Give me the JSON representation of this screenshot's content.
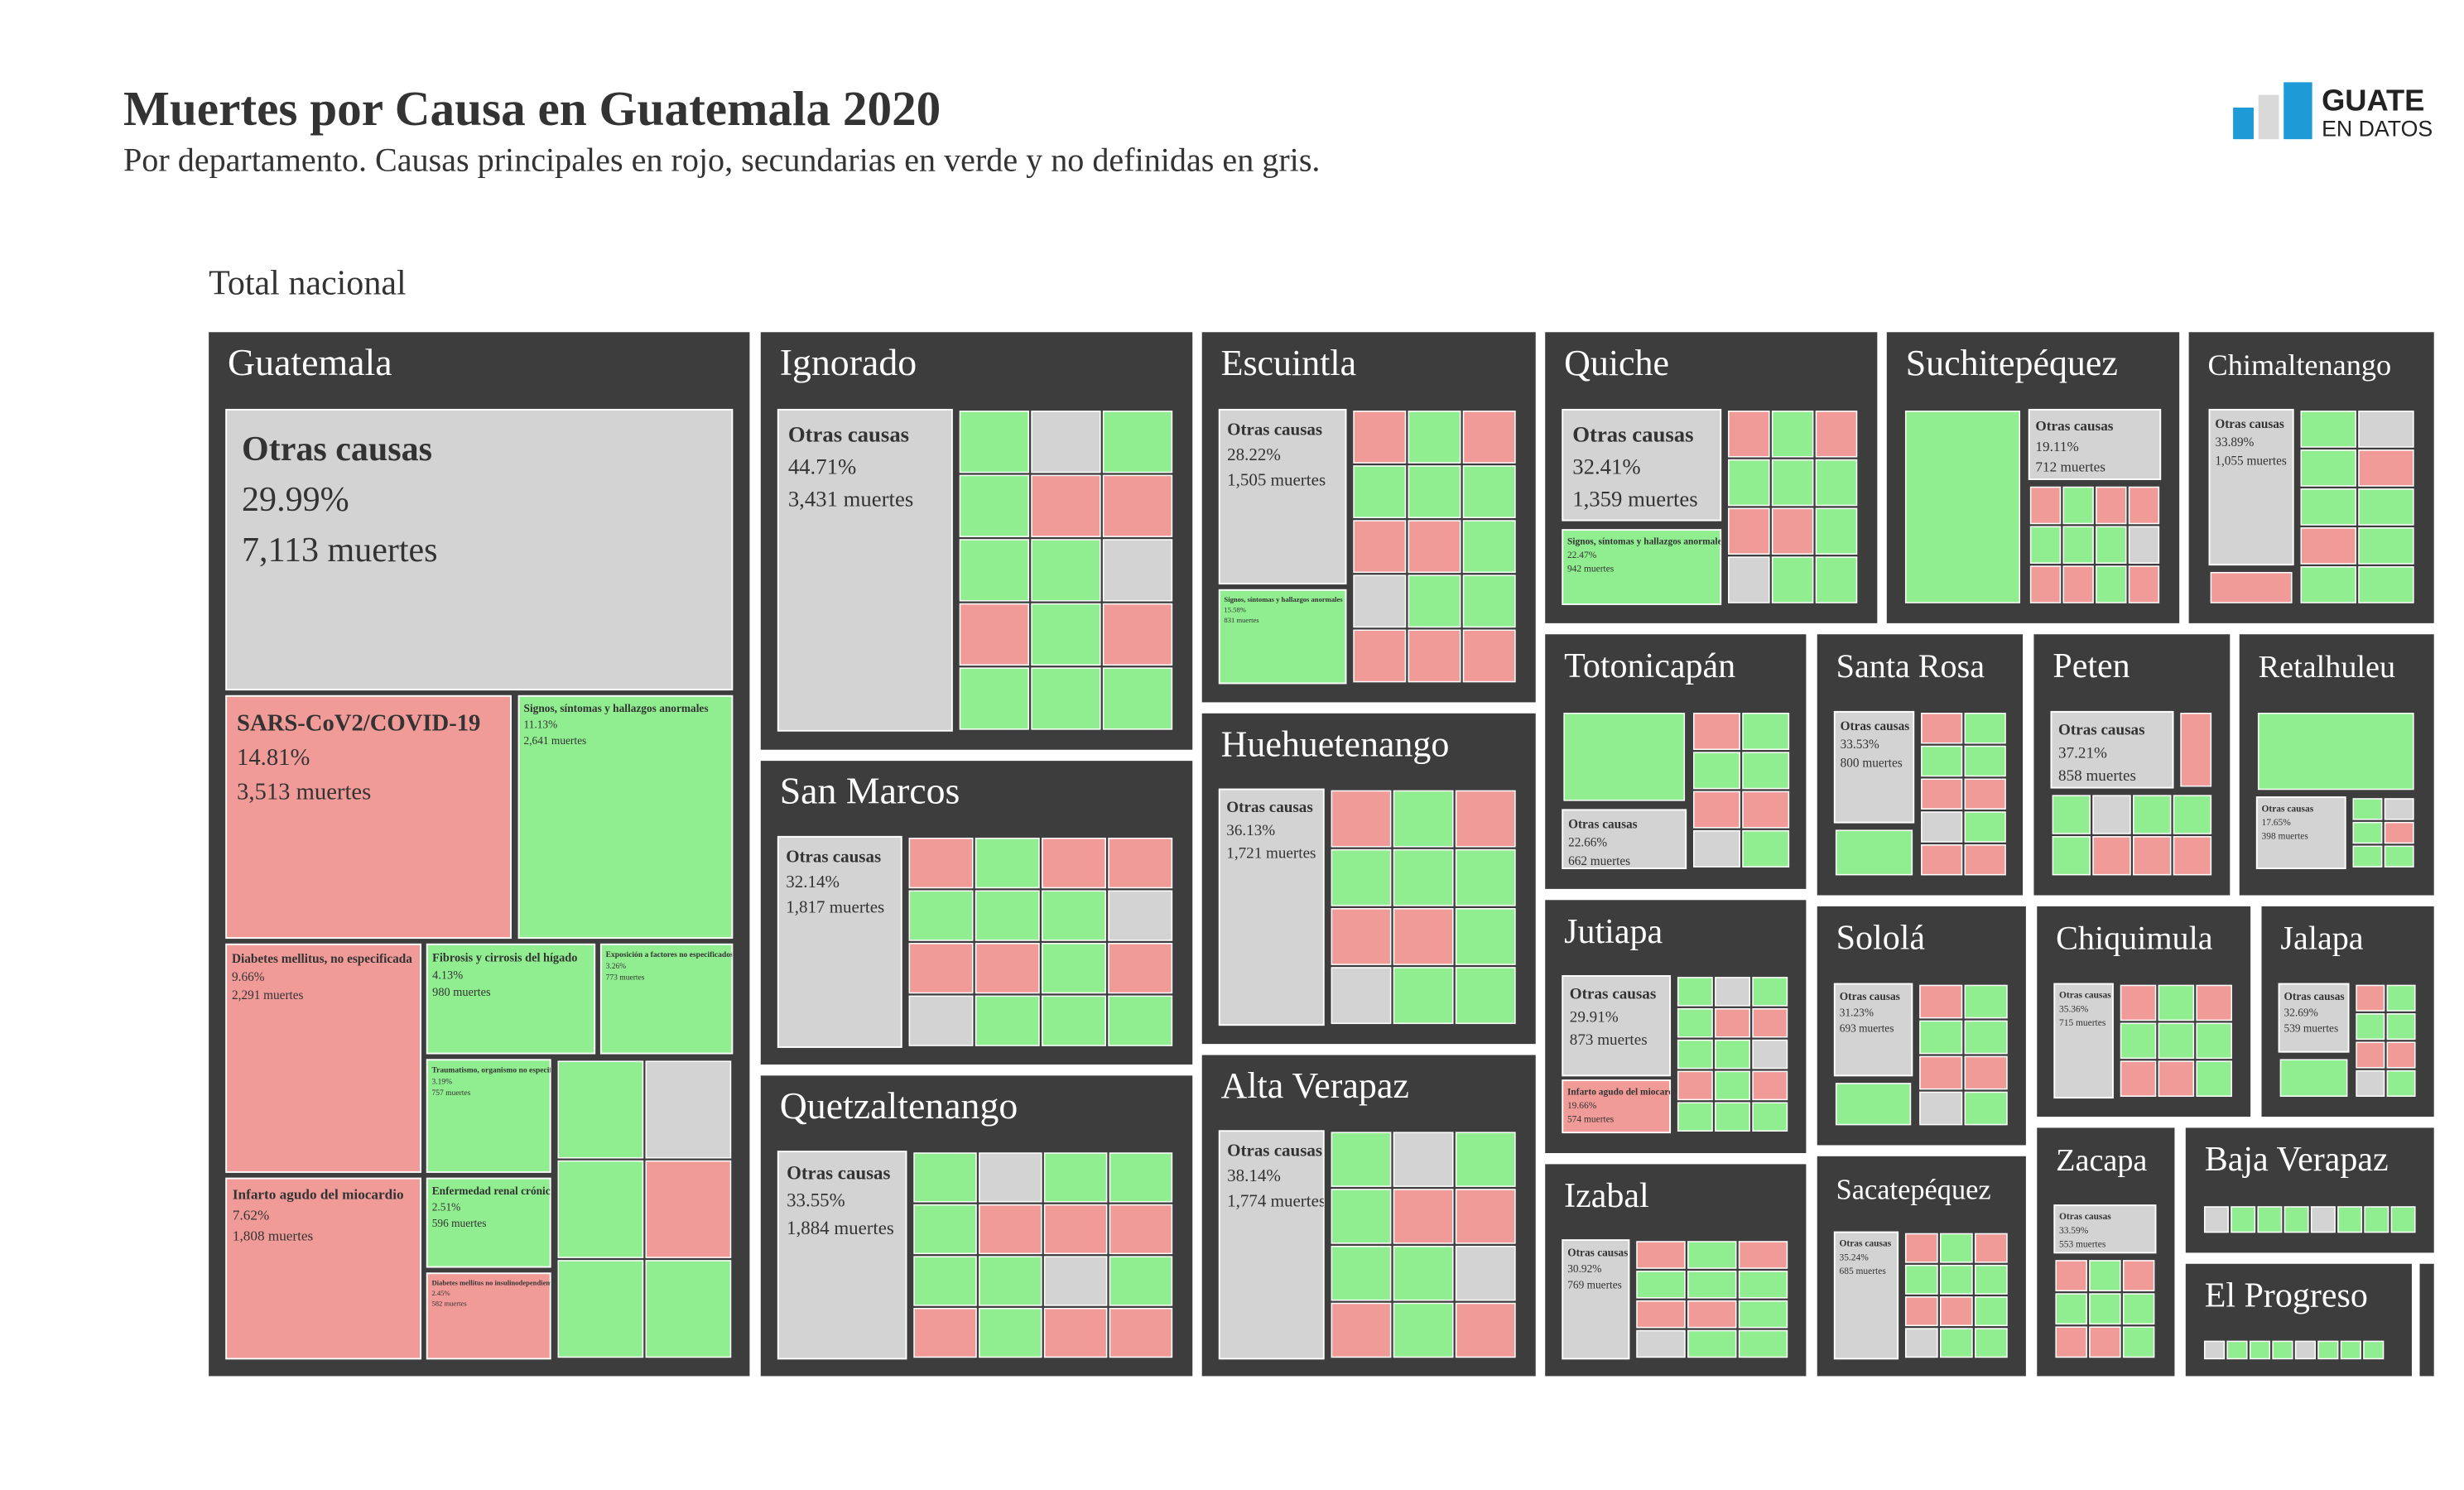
{
  "logo": {
    "line1": "GUATE",
    "line2": "EN DATOS"
  },
  "chart_data": {
    "type": "treemap",
    "title": "Muertes por Causa en Guatemala 2020",
    "subtitle": "Por departamento. Causas principales en rojo, secundarias en verde y no definidas en gris.",
    "root_label": "Total nacional",
    "departments": [
      {
        "name": "Guatemala",
        "cells": [
          {
            "name": "Otras causas",
            "color": "#d3d3d3",
            "pct": {
              "value": 29.99,
              "label": "29.99%"
            },
            "deaths": {
              "value": 7113,
              "label": "7,113 muertes"
            }
          },
          {
            "name": "SARS-CoV2/COVID-19",
            "color": "#f09b98",
            "pct": {
              "value": 14.81,
              "label": "14.81%"
            },
            "deaths": {
              "value": 3513,
              "label": "3,513 muertes"
            }
          },
          {
            "name": "Signos, síntomas y hallazgos anormales",
            "color": "#90ee90",
            "pct": {
              "value": 11.13,
              "label": "11.13%"
            },
            "deaths": {
              "value": 2641,
              "label": "2,641 muertes"
            }
          },
          {
            "name": "Diabetes mellitus, no especificada",
            "color": "#f09b98",
            "pct": {
              "value": 9.66,
              "label": "9.66%"
            },
            "deaths": {
              "value": 2291,
              "label": "2,291 muertes"
            }
          },
          {
            "name": "Infarto agudo del miocardio",
            "color": "#f09b98",
            "pct": {
              "value": 7.62,
              "label": "7.62%"
            },
            "deaths": {
              "value": 1808,
              "label": "1,808 muertes"
            }
          },
          {
            "name": "Fibrosis y cirrosis del hígado",
            "color": "#90ee90",
            "pct": {
              "value": 4.13,
              "label": "4.13%"
            },
            "deaths": {
              "value": 980,
              "label": "980 muertes"
            }
          },
          {
            "name": "Exposición a factores no especificados",
            "color": "#90ee90",
            "pct": {
              "value": 3.26,
              "label": "3.26%"
            },
            "deaths": {
              "value": 773,
              "label": "773 muertes"
            }
          },
          {
            "name": "Traumatismo, organismo no especificado",
            "color": "#90ee90",
            "pct": {
              "value": 3.19,
              "label": "3.19%"
            },
            "deaths": {
              "value": 757,
              "label": "757 muertes"
            }
          },
          {
            "name": "Enfermedad renal crónica",
            "color": "#90ee90",
            "pct": {
              "value": 2.51,
              "label": "2.51%"
            },
            "deaths": {
              "value": 596,
              "label": "596 muertes"
            }
          },
          {
            "name": "Diabetes mellitus no insulinodependiente",
            "color": "#f09b98",
            "pct": {
              "value": 2.45,
              "label": "2.45%"
            },
            "deaths": {
              "value": 582,
              "label": "582 muertes"
            }
          }
        ]
      },
      {
        "name": "Ignorado",
        "cells": [
          {
            "name": "Otras causas",
            "color": "#d3d3d3",
            "pct": {
              "value": 44.71,
              "label": "44.71%"
            },
            "deaths": {
              "value": 3431,
              "label": "3,431 muertes"
            }
          }
        ]
      },
      {
        "name": "San Marcos",
        "cells": [
          {
            "name": "Otras causas",
            "color": "#d3d3d3",
            "pct": {
              "value": 32.14,
              "label": "32.14%"
            },
            "deaths": {
              "value": 1817,
              "label": "1,817 muertes"
            }
          }
        ]
      },
      {
        "name": "Quetzaltenango",
        "cells": [
          {
            "name": "Otras causas",
            "color": "#d3d3d3",
            "pct": {
              "value": 33.55,
              "label": "33.55%"
            },
            "deaths": {
              "value": 1884,
              "label": "1,884 muertes"
            }
          }
        ]
      },
      {
        "name": "Escuintla",
        "cells": [
          {
            "name": "Otras causas",
            "color": "#d3d3d3",
            "pct": {
              "value": 28.22,
              "label": "28.22%"
            },
            "deaths": {
              "value": 1505,
              "label": "1,505 muertes"
            }
          },
          {
            "name": "Signos, síntomas y hallazgos anormales",
            "color": "#90ee90",
            "pct": {
              "value": 15.58,
              "label": "15.58%"
            },
            "deaths": {
              "value": 831,
              "label": "831 muertes"
            }
          }
        ]
      },
      {
        "name": "Huehuetenango",
        "cells": [
          {
            "name": "Otras causas",
            "color": "#d3d3d3",
            "pct": {
              "value": 36.13,
              "label": "36.13%"
            },
            "deaths": {
              "value": 1721,
              "label": "1,721 muertes"
            }
          }
        ]
      },
      {
        "name": "Alta Verapaz",
        "cells": [
          {
            "name": "Otras causas",
            "color": "#d3d3d3",
            "pct": {
              "value": 38.14,
              "label": "38.14%"
            },
            "deaths": {
              "value": 1774,
              "label": "1,774 muertes"
            }
          }
        ]
      },
      {
        "name": "Quiche",
        "cells": [
          {
            "name": "Otras causas",
            "color": "#d3d3d3",
            "pct": {
              "value": 32.41,
              "label": "32.41%"
            },
            "deaths": {
              "value": 1359,
              "label": "1,359 muertes"
            }
          },
          {
            "name": "Signos, síntomas y hallazgos anormales",
            "color": "#90ee90",
            "pct": {
              "value": 22.47,
              "label": "22.47%"
            },
            "deaths": {
              "value": 942,
              "label": "942 muertes"
            }
          }
        ]
      },
      {
        "name": "Suchitepéquez",
        "cells": [
          {
            "name": "Otras causas",
            "color": "#d3d3d3",
            "pct": {
              "value": 19.11,
              "label": "19.11%"
            },
            "deaths": {
              "value": 712,
              "label": "712 muertes"
            }
          }
        ]
      },
      {
        "name": "Chimaltenango",
        "cells": [
          {
            "name": "Otras causas",
            "color": "#d3d3d3",
            "pct": {
              "value": 33.89,
              "label": "33.89%"
            },
            "deaths": {
              "value": 1055,
              "label": "1,055 muertes"
            }
          }
        ]
      },
      {
        "name": "Totonicapán",
        "cells": [
          {
            "name": "Otras causas",
            "color": "#d3d3d3",
            "pct": {
              "value": 22.66,
              "label": "22.66%"
            },
            "deaths": {
              "value": 662,
              "label": "662 muertes"
            }
          }
        ]
      },
      {
        "name": "Santa Rosa",
        "cells": [
          {
            "name": "Otras causas",
            "color": "#d3d3d3",
            "pct": {
              "value": 33.53,
              "label": "33.53%"
            },
            "deaths": {
              "value": 800,
              "label": "800 muertes"
            }
          }
        ]
      },
      {
        "name": "Peten",
        "cells": [
          {
            "name": "Otras causas",
            "color": "#d3d3d3",
            "pct": {
              "value": 37.21,
              "label": "37.21%"
            },
            "deaths": {
              "value": 858,
              "label": "858 muertes"
            }
          }
        ]
      },
      {
        "name": "Retalhuleu",
        "cells": [
          {
            "name": "Otras causas",
            "color": "#d3d3d3",
            "pct": {
              "value": 17.65,
              "label": "17.65%"
            },
            "deaths": {
              "value": 398,
              "label": "398 muertes"
            }
          }
        ]
      },
      {
        "name": "Jutiapa",
        "cells": [
          {
            "name": "Otras causas",
            "color": "#d3d3d3",
            "pct": {
              "value": 29.91,
              "label": "29.91%"
            },
            "deaths": {
              "value": 873,
              "label": "873 muertes"
            }
          },
          {
            "name": "Infarto agudo del miocardio",
            "color": "#f09b98",
            "pct": {
              "value": 19.66,
              "label": "19.66%"
            },
            "deaths": {
              "value": 574,
              "label": "574 muertes"
            }
          }
        ]
      },
      {
        "name": "Izabal",
        "cells": [
          {
            "name": "Otras causas",
            "color": "#d3d3d3",
            "pct": {
              "value": 30.92,
              "label": "30.92%"
            },
            "deaths": {
              "value": 769,
              "label": "769 muertes"
            }
          }
        ]
      },
      {
        "name": "Sololá",
        "cells": [
          {
            "name": "Otras causas",
            "color": "#d3d3d3",
            "pct": {
              "value": 31.23,
              "label": "31.23%"
            },
            "deaths": {
              "value": 693,
              "label": "693 muertes"
            }
          }
        ]
      },
      {
        "name": "Sacatepéquez",
        "cells": [
          {
            "name": "Otras causas",
            "color": "#d3d3d3",
            "pct": {
              "value": 35.24,
              "label": "35.24%"
            },
            "deaths": {
              "value": 685,
              "label": "685 muertes"
            }
          }
        ]
      },
      {
        "name": "Chiquimula",
        "cells": [
          {
            "name": "Otras causas",
            "color": "#d3d3d3",
            "pct": {
              "value": 35.36,
              "label": "35.36%"
            },
            "deaths": {
              "value": 715,
              "label": "715 muertes"
            }
          }
        ]
      },
      {
        "name": "Jalapa",
        "cells": [
          {
            "name": "Otras causas",
            "color": "#d3d3d3",
            "pct": {
              "value": 32.69,
              "label": "32.69%"
            },
            "deaths": {
              "value": 539,
              "label": "539 muertes"
            }
          }
        ]
      },
      {
        "name": "Zacapa",
        "cells": [
          {
            "name": "Otras causas",
            "color": "#d3d3d3",
            "pct": {
              "value": 33.59,
              "label": "33.59%"
            },
            "deaths": {
              "value": 553,
              "label": "553 muertes"
            }
          }
        ]
      },
      {
        "name": "Baja Verapaz",
        "cells": []
      },
      {
        "name": "El Progreso",
        "cells": []
      }
    ]
  }
}
